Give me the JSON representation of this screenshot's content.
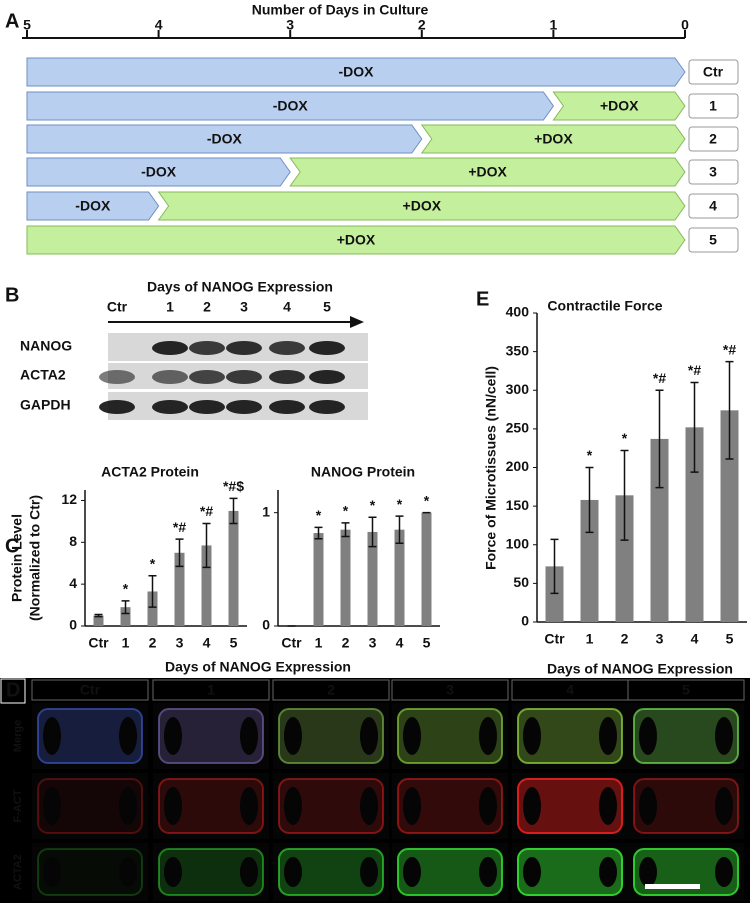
{
  "panel_labels": [
    "A",
    "B",
    "C",
    "D",
    "E"
  ],
  "chart_data": [
    {
      "type": "timeline",
      "title": "Number of Days in Culture",
      "categories": [
        "Ctr",
        "1",
        "2",
        "3",
        "4",
        "5"
      ],
      "series": [
        {
          "name": "-DOX",
          "color": "#b9cff0",
          "values": [
            5,
            4,
            3,
            2,
            1,
            0
          ]
        },
        {
          "name": "+DOX",
          "color": "#c4ef9c",
          "values": [
            0,
            1,
            2,
            3,
            4,
            5
          ]
        }
      ],
      "xlim": [
        5,
        0
      ],
      "xticks": [
        5,
        4,
        3,
        2,
        1,
        0
      ]
    },
    {
      "type": "bar",
      "title": "ACTA2 Protein",
      "ylabel": [
        "Protein Level",
        "(Normalized to Ctr)"
      ],
      "xlabel": "Days of NANOG Expression",
      "categories": [
        "Ctr",
        "1",
        "2",
        "3",
        "4",
        "5"
      ],
      "values": [
        1,
        1.8,
        3.3,
        7,
        7.7,
        11
      ],
      "errors": [
        0.1,
        0.6,
        1.5,
        1.3,
        2.1,
        1.2
      ],
      "annotations": [
        null,
        "*",
        "*",
        "*#",
        "*#",
        "*#$"
      ],
      "color": "#808080",
      "ylim": [
        0,
        13
      ],
      "yticks": [
        0,
        4,
        8,
        12
      ]
    },
    {
      "type": "bar",
      "title": "NANOG Protein",
      "categories": [
        "Ctr",
        "1",
        "2",
        "3",
        "4",
        "5"
      ],
      "values": [
        0,
        0.82,
        0.85,
        0.83,
        0.85,
        1.0
      ],
      "errors": [
        0,
        0.05,
        0.06,
        0.13,
        0.12,
        0
      ],
      "annotations": [
        null,
        "*",
        "*",
        "*",
        "*",
        "*"
      ],
      "color": "#808080",
      "ylim": [
        0,
        1.2
      ],
      "yticks": [
        0,
        1
      ]
    },
    {
      "type": "bar",
      "title": "Contractile Force",
      "ylabel": "Force of Microtissues (nN/cell)",
      "xlabel": "Days of NANOG Expression",
      "categories": [
        "Ctr",
        "1",
        "2",
        "3",
        "4",
        "5"
      ],
      "values": [
        72,
        158,
        164,
        237,
        252,
        274
      ],
      "errors": [
        35,
        42,
        58,
        63,
        58,
        63
      ],
      "annotations": [
        null,
        "*",
        "*",
        "*#",
        "*#",
        "*#"
      ],
      "color": "#808080",
      "ylim": [
        0,
        400
      ],
      "yticks": [
        0,
        50,
        100,
        150,
        200,
        250,
        300,
        350,
        400
      ]
    }
  ],
  "blot": {
    "title": "Days of NANOG Expression",
    "lanes": [
      "Ctr",
      "1",
      "2",
      "3",
      "4",
      "5"
    ],
    "rows": [
      "NANOG",
      "ACTA2",
      "GAPDH"
    ]
  },
  "images": {
    "columns": [
      "Ctr",
      "1",
      "2",
      "3",
      "4",
      "5"
    ],
    "rows": [
      "Merge",
      "F-ACT",
      "ACTA2"
    ]
  }
}
